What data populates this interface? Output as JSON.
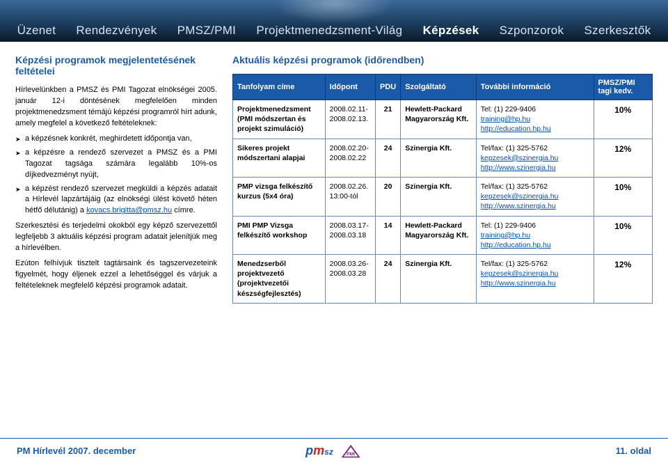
{
  "nav": {
    "items": [
      "Üzenet",
      "Rendezvények",
      "PMSZ/PMI",
      "Projektmenedzsment-Világ",
      "Képzések",
      "Szponzorok",
      "Szerkesztők"
    ],
    "active_index": 4
  },
  "left": {
    "title": "Képzési programok megjelentetésének feltételei",
    "p1": "Hírlevelünkben a PMSZ és PMI Tagozat elnökségei 2005. január 12-i döntésének megfelelően minden projektmenedzsment témájú képzési programról hírt adunk, amely megfelel a következő feltételeknek:",
    "bullets": [
      "a képzésnek konkrét, meghirdetett időpontja van,",
      "a képzésre a rendező szervezet a PMSZ és a PMI Tagozat tagsága számára legalább 10%-os díjkedvezményt nyújt,",
      "a képzést rendező szervezet megküldi a képzés adatait a Hírlevél lapzártájáig (az elnökségi ülést követő héten hétfő délutánig) a kovacs.brigitta@pmsz.hu címre."
    ],
    "email": "kovacs.brigitta@pmsz.hu",
    "p2": "Szerkesztési és terjedelmi okokból egy képző szervezettől legfeljebb 3 aktuális képzési program adatait jelenítjük meg a hírlevélben.",
    "p3": "Ezúton felhívjuk tisztelt tagtársaink és tagszervezeteink figyelmét, hogy éljenek ezzel a lehetőséggel és várjuk a feltételeknek megfelelő képzési programok adatait."
  },
  "right": {
    "title": "Aktuális képzési programok (időrendben)",
    "headers": [
      "Tanfolyam címe",
      "Időpont",
      "PDU",
      "Szolgáltató",
      "További információ",
      "PMSZ/PMI tagi kedv."
    ],
    "rows": [
      {
        "title": "Projektmenedzsment (PMI módszertan és projekt szimuláció)",
        "date": "2008.02.11-2008.02.13.",
        "pdu": "21",
        "provider": "Hewlett-Packard Magyarország Kft.",
        "info_phone": "Tel: (1) 229-9406",
        "info_links": [
          "training@hp.hu",
          "http://education.hp.hu"
        ],
        "discount": "10%"
      },
      {
        "title": "Sikeres projekt módszertani alapjai",
        "date": "2008.02.20-2008.02.22",
        "pdu": "24",
        "provider": "Szinergia Kft.",
        "info_phone": "Tel/fax: (1) 325-5762",
        "info_links": [
          "kepzesek@szinergia.hu",
          "http://www.szinergia.hu"
        ],
        "discount": "12%"
      },
      {
        "title": "PMP vizsga felkészítő kurzus (5x4 óra)",
        "date": "2008.02.26. 13:00-tól",
        "pdu": "20",
        "provider": "Szinergia Kft.",
        "info_phone": "Tel/fax: (1) 325-5762",
        "info_links": [
          "kepzesek@szinergia.hu",
          "http://www.szinergia.hu"
        ],
        "discount": "10%"
      },
      {
        "title": "PMI PMP Vizsga felkészítő workshop",
        "date": "2008.03.17-2008.03.18",
        "pdu": "14",
        "provider": "Hewlett-Packard Magyarország Kft.",
        "info_phone": "Tel: (1) 229-9406",
        "info_links": [
          "training@hp.hu",
          "http://education.hp.hu"
        ],
        "discount": "10%"
      },
      {
        "title": "Menedzserből projektvezető (projektvezetői készségfejlesztés)",
        "date": "2008.03.26-2008.03.28",
        "pdu": "24",
        "provider": "Szinergia Kft.",
        "info_phone": "Tel/fax: (1) 325-5762",
        "info_links": [
          "kepzesek@szinergia.hu",
          "http://www.szinergia.hu"
        ],
        "discount": "12%"
      }
    ]
  },
  "footer": {
    "left": "PM Hírlevél 2007. december",
    "right": "11. oldal"
  },
  "colors": {
    "brand_blue": "#1a5aa8",
    "link_blue": "#0050b0",
    "header_bg_top": "#3a6a9a",
    "header_bg_bottom": "#0a1a2a",
    "table_header_bg": "#1a5aa8",
    "table_border": "#6a8ab6"
  }
}
